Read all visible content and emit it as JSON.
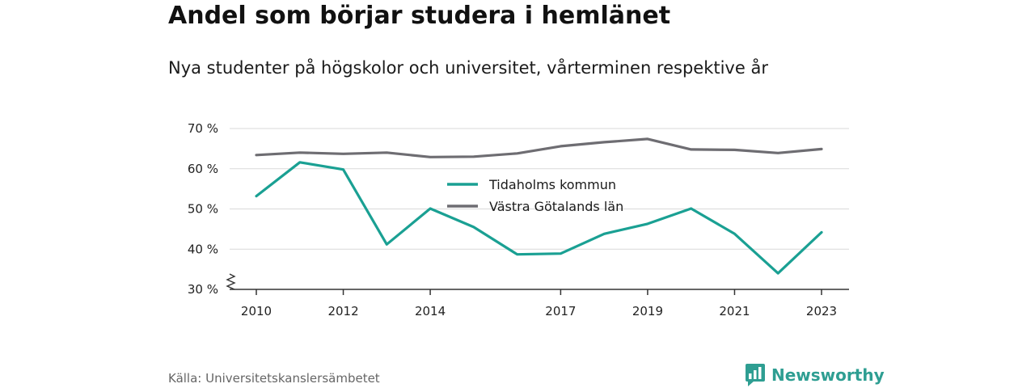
{
  "header": {
    "title": "Andel som börjar studera i hemlänet",
    "subtitle": "Nya studenter på högskolor och universitet, vårterminen respektive år"
  },
  "footer": {
    "source": "Källa: Universitetskanslersämbetet",
    "brand": "Newsworthy",
    "brand_icon": "bar-chart-speech-bubble-icon",
    "brand_color": "#2e9e92"
  },
  "chart_data": {
    "type": "line",
    "title": "Andel som börjar studera i hemlänet",
    "subtitle": "Nya studenter på högskolor och universitet, vårterminen respektive år",
    "xlabel": "",
    "ylabel": "",
    "x": [
      2010,
      2011,
      2012,
      2013,
      2014,
      2015,
      2016,
      2017,
      2018,
      2019,
      2020,
      2021,
      2022,
      2023
    ],
    "x_ticks": [
      "2010",
      "2012",
      "2014",
      "2017",
      "2019",
      "2021",
      "2023"
    ],
    "y_ticks": [
      "30 %",
      "40 %",
      "50 %",
      "60 %",
      "70 %"
    ],
    "ylim": [
      30,
      70
    ],
    "xlim": [
      2009.5,
      2023.65
    ],
    "y_axis_break": true,
    "grid": "horizontal",
    "legend_position": "center",
    "series": [
      {
        "name": "Tidaholms kommun",
        "color": "#1aa093",
        "values": [
          53.2,
          61.6,
          59.8,
          41.2,
          50.1,
          45.5,
          38.7,
          38.9,
          43.8,
          46.3,
          50.1,
          43.8,
          34.0,
          44.2
        ]
      },
      {
        "name": "Västra Götalands län",
        "color": "#6e6d72",
        "values": [
          63.4,
          64.0,
          63.7,
          64.0,
          62.9,
          63.0,
          63.8,
          65.6,
          66.6,
          67.4,
          64.8,
          64.7,
          63.9,
          64.9
        ]
      }
    ]
  }
}
